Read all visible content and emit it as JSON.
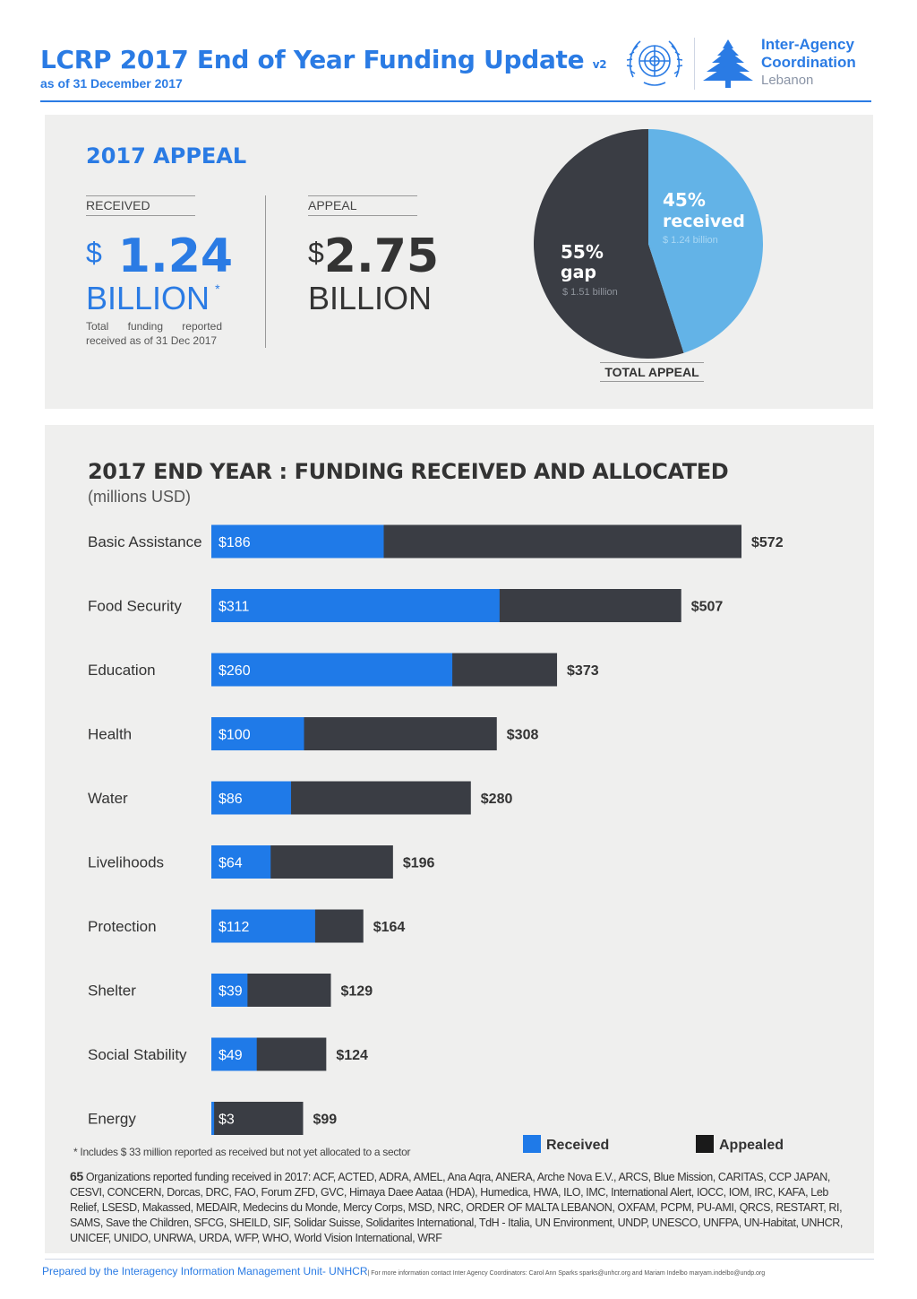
{
  "header": {
    "title": "LCRP 2017 End of Year Funding Update",
    "version": "v2",
    "subtitle": "as of 31 December 2017",
    "logo": {
      "line1": "Inter-Agency",
      "line2": "Coordination",
      "line3": "Lebanon"
    }
  },
  "appeal": {
    "heading": "2017 APPEAL",
    "received_label": "RECEIVED",
    "received_currency": "$",
    "received_value": "1.24",
    "received_unit": "BILLION",
    "received_asterisk": "*",
    "received_note": "Total funding reported received as of 31 Dec 2017",
    "appeal_label": "APPEAL",
    "appeal_currency": "$",
    "appeal_value": "2.75",
    "appeal_unit": "BILLION",
    "pie": {
      "received_pct": "45%",
      "received_word": "received",
      "received_amount": "$ 1.24 billion",
      "gap_pct": "55%",
      "gap_word": "gap",
      "gap_amount": "$ 1.51 billion",
      "received_fraction": 0.45,
      "colors": {
        "received": "#63b3e7",
        "gap": "#3a3d44"
      }
    },
    "total_label": "TOTAL APPEAL"
  },
  "chart_data": {
    "type": "bar",
    "title": "2017 END YEAR : FUNDING RECEIVED AND ALLOCATED",
    "unit_label": "(millions USD)",
    "orientation": "horizontal",
    "categories": [
      "Basic Assistance",
      "Food Security",
      "Education",
      "Health",
      "Water",
      "Livelihoods",
      "Protection",
      "Shelter",
      "Social Stability",
      "Energy"
    ],
    "series": [
      {
        "name": "Received",
        "color": "#1f7ae8",
        "values": [
          186,
          311,
          260,
          100,
          86,
          64,
          112,
          39,
          49,
          3
        ]
      },
      {
        "name": "Appealed",
        "color": "#3a3d44",
        "values": [
          572,
          507,
          373,
          308,
          280,
          196,
          164,
          129,
          124,
          99
        ]
      }
    ],
    "received_labels": [
      "$186",
      "$311",
      "$260",
      "$100",
      "$86",
      "$64",
      "$112",
      "$39",
      "$49",
      "$3"
    ],
    "appealed_labels": [
      "$572",
      "$507",
      "$373",
      "$308",
      "$280",
      "$196",
      "$164",
      "$129",
      "$124",
      "$99"
    ],
    "xlim": [
      0,
      572
    ],
    "grid": false,
    "legend_position": "bottom-right"
  },
  "footer": {
    "footnote": "* Includes $ 33 million reported as received but not yet allocated to a sector",
    "legend_received": "Received",
    "legend_appealed": "Appealed",
    "org_count": "65",
    "org_text": "Organizations reported funding received in 2017: ACF, ACTED, ADRA, AMEL, Ana Aqra, ANERA, Arche Nova E.V., ARCS, Blue Mission, CARITAS, CCP JAPAN, CESVI, CONCERN, Dorcas, DRC, FAO, Forum ZFD, GVC, Himaya Daee Aataa (HDA), Humedica, HWA, ILO, IMC, International Alert, IOCC, IOM, IRC, KAFA, Leb Relief, LSESD, Makassed, MEDAIR, Medecins du Monde, Mercy Corps, MSD, NRC, ORDER OF MALTA LEBANON, OXFAM, PCPM, PU-AMI, QRCS, RESTART, RI, SAMS, Save the Children, SFCG, SHEILD, SIF, Solidar Suisse, Solidarites International, TdH - Italia, UN Environment, UNDP, UNESCO, UNFPA, UN-Habitat, UNHCR, UNICEF, UNIDO, UNRWA, URDA, WFP, WHO, World Vision International, WRF",
    "credit": "Prepared by the Interagency Information Management Unit- UNHCR",
    "credit_small": "| For more information contact Inter Agency Coordinators: Carol Ann Sparks sparks@unhcr.org and Mariam Indelbo maryam.indelbo@undp.org"
  }
}
